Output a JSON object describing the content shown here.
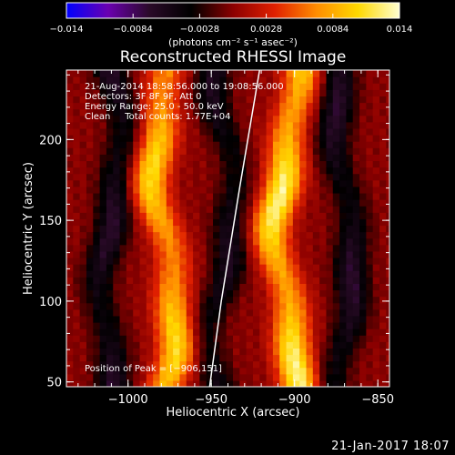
{
  "chart_data": {
    "type": "heatmap",
    "title": "Reconstructed RHESSI Image",
    "xlabel": "Heliocentric X (arcsec)",
    "ylabel": "Heliocentric Y (arcsec)",
    "xlim": [
      -1037,
      -843
    ],
    "ylim": [
      47,
      243
    ],
    "x_ticks": [
      -1000,
      -950,
      -900,
      -850
    ],
    "x_tick_labels": [
      "−1000",
      "−950",
      "−900",
      "−850"
    ],
    "y_ticks": [
      50,
      100,
      150,
      200
    ],
    "y_tick_labels": [
      "50",
      "100",
      "150",
      "200"
    ],
    "colorbar": {
      "range": [
        -0.014,
        0.014
      ],
      "ticks": [
        -0.014,
        -0.0084,
        -0.0028,
        0.0028,
        0.0084,
        0.014
      ],
      "tick_labels": [
        "−0.014",
        "−0.0084",
        "−0.0028",
        "0.0028",
        "0.0084",
        "0.014"
      ],
      "unit_label": "(photons cm⁻² s⁻¹ asec⁻²)",
      "colors": [
        "#0000ff",
        "#6a00b0",
        "#2a0a28",
        "#000000",
        "#8b0000",
        "#e02000",
        "#ff8c00",
        "#ffd800",
        "#ffffd0"
      ]
    },
    "image": {
      "pixel_size_arcsec": 4,
      "bands": [
        {
          "kind": "positive",
          "x_center": -978,
          "x_amp": 7,
          "width": 11,
          "peak": 0.011
        },
        {
          "kind": "positive",
          "x_center": -905,
          "x_amp": 7,
          "width": 11,
          "peak": 0.013
        },
        {
          "kind": "negative",
          "x_center": -1010,
          "x_amp": 6,
          "width": 10,
          "peak": -0.007
        },
        {
          "kind": "negative",
          "x_center": -943,
          "x_amp": 7,
          "width": 10,
          "peak": -0.006
        },
        {
          "kind": "negative",
          "x_center": -870,
          "x_amp": 6,
          "width": 10,
          "peak": -0.007
        }
      ],
      "limb_curve": [
        [
          -951,
          47
        ],
        [
          -944,
          100
        ],
        [
          -933,
          170
        ],
        [
          -921,
          243
        ]
      ]
    },
    "annotations": [
      "21-Aug-2014 18:58:56.000 to 19:08:56.000",
      "Detectors: 3F 8F 9F, Att 0",
      "Energy Range: 25.0 - 50.0 keV",
      "Clean     Total counts: 1.77E+04"
    ],
    "peak_label": "Position of Peak = [−906,151]",
    "peak": [
      -906,
      151
    ]
  },
  "footer": {
    "timestamp": "21-Jan-2017 18:07"
  }
}
